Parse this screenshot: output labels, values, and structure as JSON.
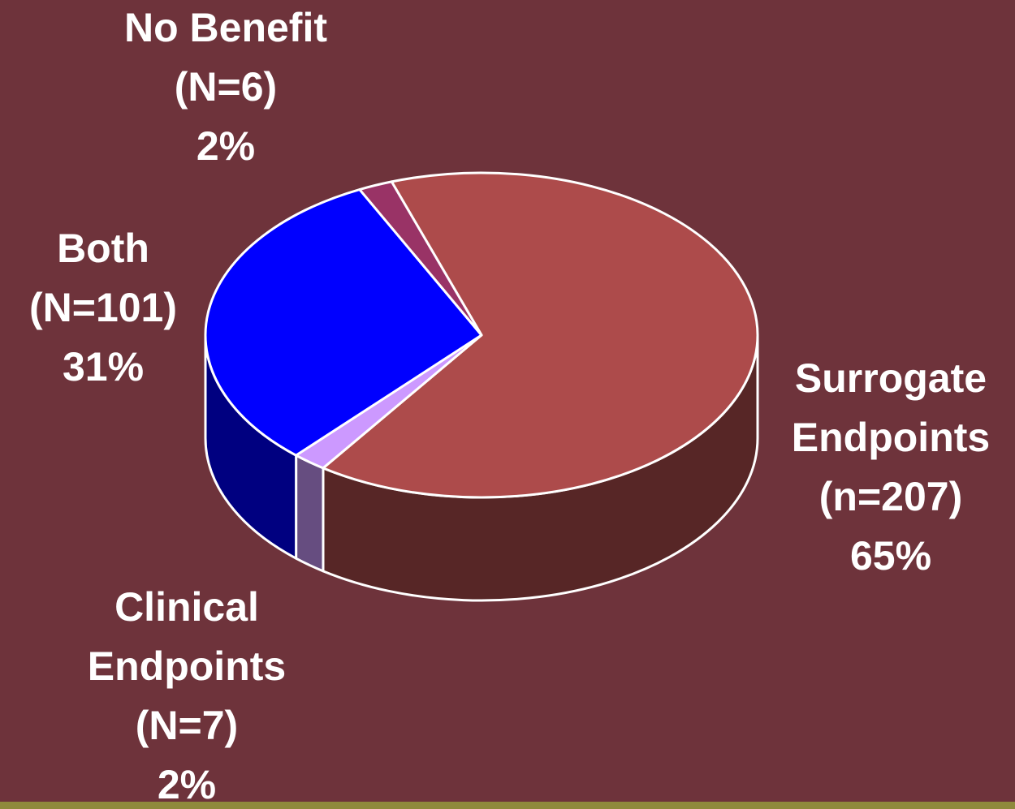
{
  "chart_data": {
    "type": "pie3d",
    "categories": [
      [
        "Surrogate",
        "Endpoints"
      ],
      [
        "Clinical",
        "Endpoints"
      ],
      [
        "Both"
      ],
      [
        "No Benefit"
      ]
    ],
    "count_labels": [
      "(n=207)",
      "(N=7)",
      "(N=101)",
      "(N=6)"
    ],
    "values": [
      65,
      2,
      31,
      2
    ],
    "value_labels": [
      "65%",
      "2%",
      "31%",
      "2%"
    ],
    "colors": [
      "#ad4b4b",
      "#cc99ff",
      "#0000ff",
      "#993366"
    ]
  }
}
